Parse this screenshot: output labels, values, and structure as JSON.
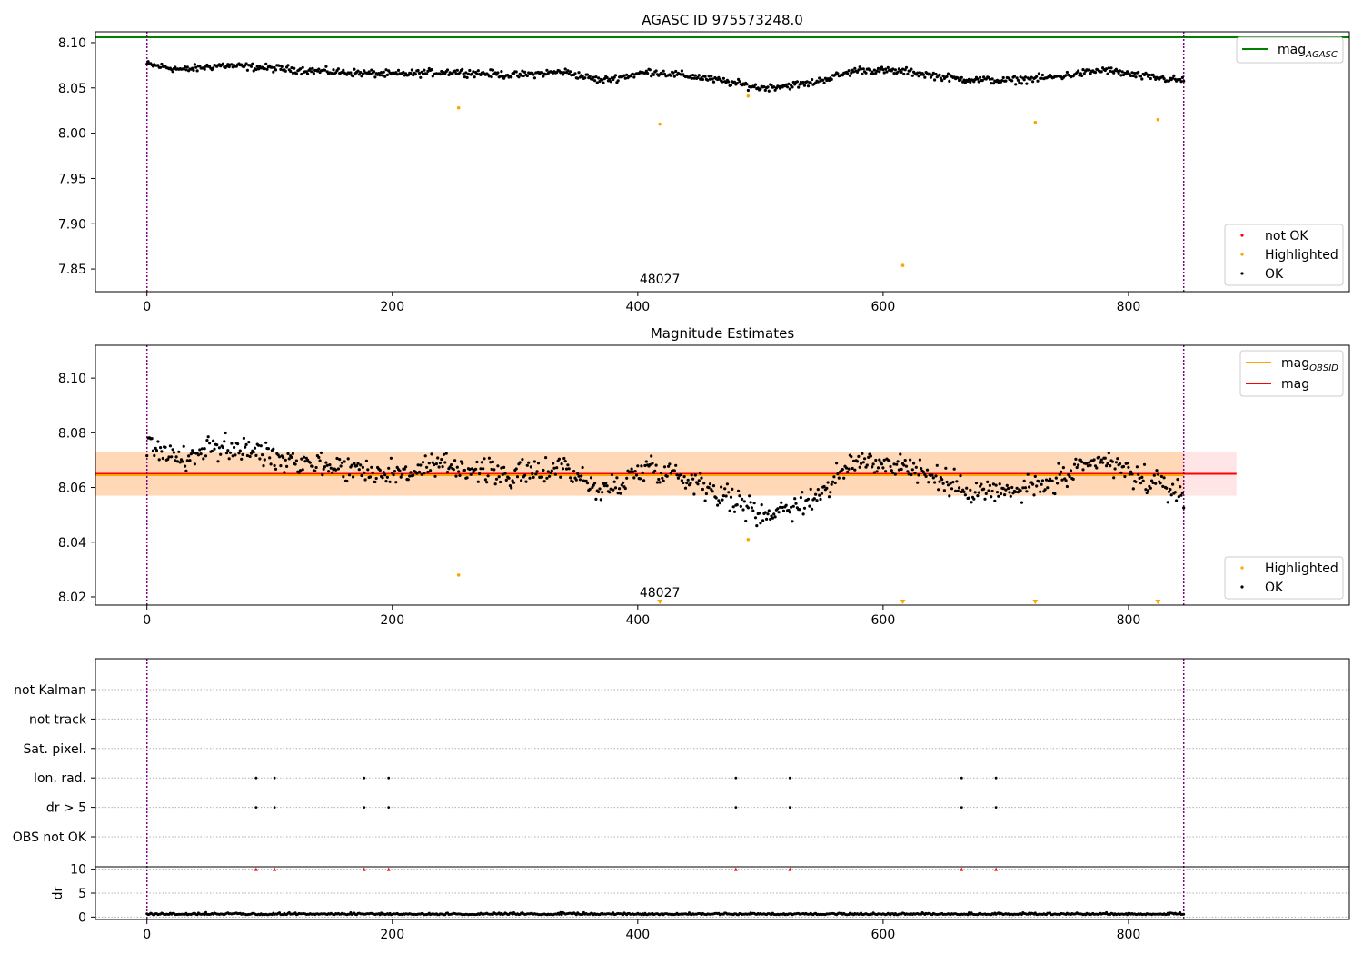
{
  "chart_data": [
    {
      "type": "scatter",
      "title": "AGASC ID 975573248.0",
      "xlim": [
        -42,
        980
      ],
      "ylim": [
        7.825,
        8.112
      ],
      "yticks": [
        8.1,
        8.05,
        8.0,
        7.95,
        7.9,
        7.85
      ],
      "ytick_labels": [
        "8.10",
        "8.05",
        "8.00",
        "7.95",
        "7.90",
        "7.85"
      ],
      "xticks": [
        0,
        200,
        400,
        600,
        800
      ],
      "xtick_labels": [
        "0",
        "200",
        "400",
        "600",
        "800"
      ],
      "vlines": [
        0,
        845
      ],
      "annotation": {
        "text": "48027",
        "x": 418
      },
      "mag_agasc": 8.106,
      "series": [
        {
          "name": "OK",
          "color": "#000000",
          "trend": [
            [
              0,
              8.076
            ],
            [
              30,
              8.07
            ],
            [
              60,
              8.075
            ],
            [
              100,
              8.072
            ],
            [
              150,
              8.068
            ],
            [
              200,
              8.065
            ],
            [
              250,
              8.068
            ],
            [
              300,
              8.064
            ],
            [
              340,
              8.068
            ],
            [
              370,
              8.058
            ],
            [
              410,
              8.068
            ],
            [
              450,
              8.062
            ],
            [
              480,
              8.055
            ],
            [
              500,
              8.05
            ],
            [
              540,
              8.055
            ],
            [
              580,
              8.07
            ],
            [
              620,
              8.068
            ],
            [
              660,
              8.06
            ],
            [
              700,
              8.058
            ],
            [
              740,
              8.062
            ],
            [
              780,
              8.07
            ],
            [
              810,
              8.063
            ],
            [
              845,
              8.058
            ]
          ],
          "noise": 0.006
        },
        {
          "name": "Highlighted",
          "color": "#ffa500",
          "points": [
            [
              254,
              8.028
            ],
            [
              418,
              8.01
            ],
            [
              490,
              8.041
            ],
            [
              616,
              7.854
            ],
            [
              724,
              8.012
            ],
            [
              824,
              8.015
            ]
          ]
        },
        {
          "name": "not OK",
          "color": "#ff0000",
          "points": []
        }
      ],
      "legend_upper": [
        {
          "name": "mag",
          "subscript": "AGASC",
          "color": "#008000"
        }
      ],
      "legend_lower": [
        {
          "name": "not OK",
          "color": "#ff0000"
        },
        {
          "name": "Highlighted",
          "color": "#ffa500"
        },
        {
          "name": "OK",
          "color": "#000000"
        }
      ]
    },
    {
      "type": "scatter",
      "title": "Magnitude Estimates",
      "xlim": [
        -42,
        980
      ],
      "ylim": [
        8.017,
        8.112
      ],
      "yticks": [
        8.1,
        8.08,
        8.06,
        8.04,
        8.02
      ],
      "ytick_labels": [
        "8.10",
        "8.08",
        "8.06",
        "8.04",
        "8.02"
      ],
      "xticks": [
        0,
        200,
        400,
        600,
        800
      ],
      "xtick_labels": [
        "0",
        "200",
        "400",
        "600",
        "800"
      ],
      "vlines": [
        0,
        845
      ],
      "annotation": {
        "text": "48027",
        "x": 418
      },
      "mag": 8.065,
      "mag_obsid": 8.0645,
      "band": [
        8.057,
        8.073
      ],
      "band_x": [
        -42,
        888
      ],
      "obsid_x": [
        -42,
        845
      ],
      "series": [
        {
          "name": "OK",
          "color": "#000000",
          "trend": [
            [
              0,
              8.076
            ],
            [
              30,
              8.07
            ],
            [
              60,
              8.075
            ],
            [
              100,
              8.072
            ],
            [
              150,
              8.068
            ],
            [
              200,
              8.065
            ],
            [
              250,
              8.068
            ],
            [
              300,
              8.064
            ],
            [
              340,
              8.068
            ],
            [
              370,
              8.058
            ],
            [
              410,
              8.068
            ],
            [
              450,
              8.062
            ],
            [
              480,
              8.055
            ],
            [
              500,
              8.05
            ],
            [
              540,
              8.055
            ],
            [
              580,
              8.07
            ],
            [
              620,
              8.068
            ],
            [
              660,
              8.06
            ],
            [
              700,
              8.058
            ],
            [
              740,
              8.062
            ],
            [
              780,
              8.07
            ],
            [
              810,
              8.063
            ],
            [
              845,
              8.058
            ]
          ],
          "noise": 0.007
        },
        {
          "name": "Highlighted",
          "color": "#ffa500",
          "points": [
            [
              254,
              8.028
            ],
            [
              490,
              8.041
            ]
          ],
          "below_axis": [
            418,
            616,
            724,
            824
          ]
        }
      ],
      "legend_upper": [
        {
          "name": "mag",
          "subscript": "OBSID",
          "color": "#ffa500"
        },
        {
          "name": "mag",
          "subscript": "",
          "color": "#ff0000"
        }
      ],
      "legend_lower": [
        {
          "name": "Highlighted",
          "color": "#ffa500"
        },
        {
          "name": "OK",
          "color": "#000000"
        }
      ]
    },
    {
      "type": "scatter",
      "xlim": [
        -42,
        980
      ],
      "flag_labels": [
        "not Kalman",
        "not track",
        "Sat. pixel.",
        "Ion. rad.",
        "dr > 5",
        "OBS not OK"
      ],
      "flag_points": {
        "Ion. rad.": [
          89,
          104,
          177,
          197,
          480,
          524,
          664,
          692
        ],
        "dr > 5": [
          89,
          104,
          177,
          197,
          480,
          524,
          664,
          692
        ]
      },
      "vlines": [
        0,
        845
      ],
      "dr": {
        "ylabel": "dr",
        "ylim": [
          -0.5,
          10.5
        ],
        "yticks": [
          10,
          5,
          0
        ],
        "ytick_labels": [
          "10",
          "5",
          "0"
        ],
        "clipped_x": [
          89,
          104,
          177,
          197,
          480,
          524,
          664,
          692
        ],
        "baseline": 0.5
      },
      "xticks": [
        0,
        200,
        400,
        600,
        800
      ],
      "xtick_labels": [
        "0",
        "200",
        "400",
        "600",
        "800"
      ]
    }
  ]
}
